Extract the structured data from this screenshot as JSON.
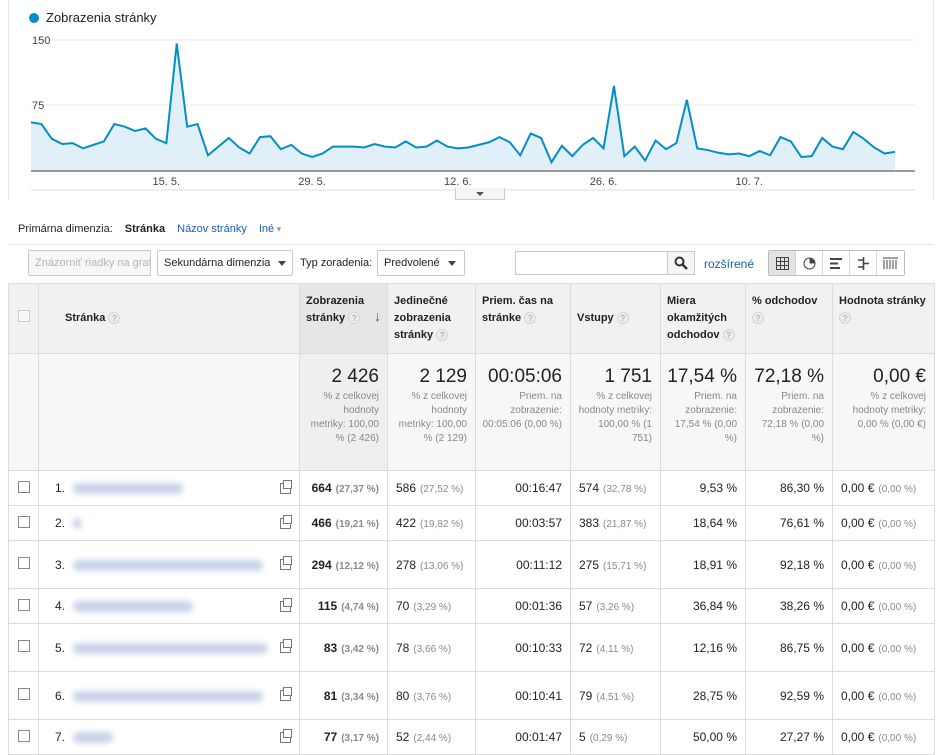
{
  "chart": {
    "legend": "Zobrazenia stránky",
    "y_ticks": [
      "150",
      "75"
    ],
    "x_ticks": [
      "15. 5.",
      "29. 5.",
      "12. 6.",
      "26. 6.",
      "10. 7."
    ],
    "line_color": "#058dc7"
  },
  "chart_data": {
    "type": "area",
    "series": [
      {
        "name": "Zobrazenia stránky",
        "values": [
          55,
          53,
          36,
          30,
          31,
          25,
          29,
          33,
          53,
          50,
          45,
          48,
          36,
          31,
          146,
          50,
          53,
          17,
          27,
          37,
          26,
          19,
          38,
          39,
          24,
          29,
          19,
          15,
          19,
          27,
          27,
          27,
          26,
          30,
          27,
          26,
          33,
          26,
          27,
          34,
          27,
          25,
          26,
          29,
          32,
          38,
          32,
          17,
          42,
          37,
          9,
          28,
          16,
          29,
          37,
          25,
          97,
          16,
          27,
          11,
          34,
          24,
          31,
          81,
          25,
          23,
          20,
          18,
          19,
          16,
          22,
          17,
          38,
          33,
          15,
          16,
          37,
          27,
          24,
          44,
          36,
          26,
          19,
          21
        ],
        "note_unit": "views per day"
      }
    ],
    "ylim": [
      0,
      150
    ],
    "x_labels": [
      "15. 5.",
      "29. 5.",
      "12. 6.",
      "26. 6.",
      "10. 7."
    ],
    "grid": true
  },
  "dims": {
    "label": "Primárna dimenzia:",
    "active": "Stránka",
    "alt": "Názov stránky",
    "more": "Iné"
  },
  "toolbar": {
    "plot_rows": "Znázorniť riadky na grafe",
    "secondary": "Sekundárna dimenzia",
    "sort_label": "Typ zoradenia:",
    "sort_value": "Predvolené",
    "advanced": "rozšírené"
  },
  "headers": {
    "page": "Stránka",
    "views": "Zobrazenia stránky",
    "unique": "Jedinečné zobrazenia stránky",
    "time": "Priem. čas na stránke",
    "entrances": "Vstupy",
    "bounce": "Miera okamžitých odchodov",
    "exit": "% odchodov",
    "value": "Hodnota stránky"
  },
  "summary": {
    "views": {
      "big": "2 426",
      "sub": "% z celkovej hodnoty metriky: 100,00 % (2 426)"
    },
    "unique": {
      "big": "2 129",
      "sub": "% z celkovej hodnoty metriky: 100,00 % (2 129)"
    },
    "time": {
      "big": "00:05:06",
      "sub": "Priem. na zobrazenie: 00:05:06 (0,00 %)"
    },
    "entrances": {
      "big": "1 751",
      "sub": "% z celkovej hodnoty metriky: 100,00 % (1 751)"
    },
    "bounce": {
      "big": "17,54 %",
      "sub": "Priem. na zobrazenie: 17,54 % (0,00 %)"
    },
    "exit": {
      "big": "72,18 %",
      "sub": "Priem. na zobrazenie: 72,18 % (0,00 %)"
    },
    "value": {
      "big": "0,00 €",
      "sub": "% z celkovej hodnoty metriky: 0,00 % (0,00 €)"
    }
  },
  "rows": [
    {
      "n": "1.",
      "views": "664",
      "views_p": "(27,37 %)",
      "uniq": "586",
      "uniq_p": "(27,52 %)",
      "time": "00:16:47",
      "ent": "574",
      "ent_p": "(32,78 %)",
      "bounce": "9,53 %",
      "exit": "86,30 %",
      "val": "0,00 €",
      "val_p": "(0,00 %)"
    },
    {
      "n": "2.",
      "views": "466",
      "views_p": "(19,21 %)",
      "uniq": "422",
      "uniq_p": "(19,82 %)",
      "time": "00:03:57",
      "ent": "383",
      "ent_p": "(21,87 %)",
      "bounce": "18,64 %",
      "exit": "76,61 %",
      "val": "0,00 €",
      "val_p": "(0,00 %)"
    },
    {
      "n": "3.",
      "views": "294",
      "views_p": "(12,12 %)",
      "uniq": "278",
      "uniq_p": "(13,06 %)",
      "time": "00:11:12",
      "ent": "275",
      "ent_p": "(15,71 %)",
      "bounce": "18,91 %",
      "exit": "92,18 %",
      "val": "0,00 €",
      "val_p": "(0,00 %)"
    },
    {
      "n": "4.",
      "views": "115",
      "views_p": "(4,74 %)",
      "uniq": "70",
      "uniq_p": "(3,29 %)",
      "time": "00:01:36",
      "ent": "57",
      "ent_p": "(3,26 %)",
      "bounce": "36,84 %",
      "exit": "38,26 %",
      "val": "0,00 €",
      "val_p": "(0,00 %)"
    },
    {
      "n": "5.",
      "views": "83",
      "views_p": "(3,42 %)",
      "uniq": "78",
      "uniq_p": "(3,66 %)",
      "time": "00:10:33",
      "ent": "72",
      "ent_p": "(4,11 %)",
      "bounce": "12,16 %",
      "exit": "86,75 %",
      "val": "0,00 €",
      "val_p": "(0,00 %)"
    },
    {
      "n": "6.",
      "views": "81",
      "views_p": "(3,34 %)",
      "uniq": "80",
      "uniq_p": "(3,76 %)",
      "time": "00:10:41",
      "ent": "79",
      "ent_p": "(4,51 %)",
      "bounce": "28,75 %",
      "exit": "92,59 %",
      "val": "0,00 €",
      "val_p": "(0,00 %)"
    },
    {
      "n": "7.",
      "views": "77",
      "views_p": "(3,17 %)",
      "uniq": "52",
      "uniq_p": "(2,44 %)",
      "time": "00:01:47",
      "ent": "5",
      "ent_p": "(0,29 %)",
      "bounce": "50,00 %",
      "exit": "27,27 %",
      "val": "0,00 €",
      "val_p": "(0,00 %)"
    }
  ]
}
